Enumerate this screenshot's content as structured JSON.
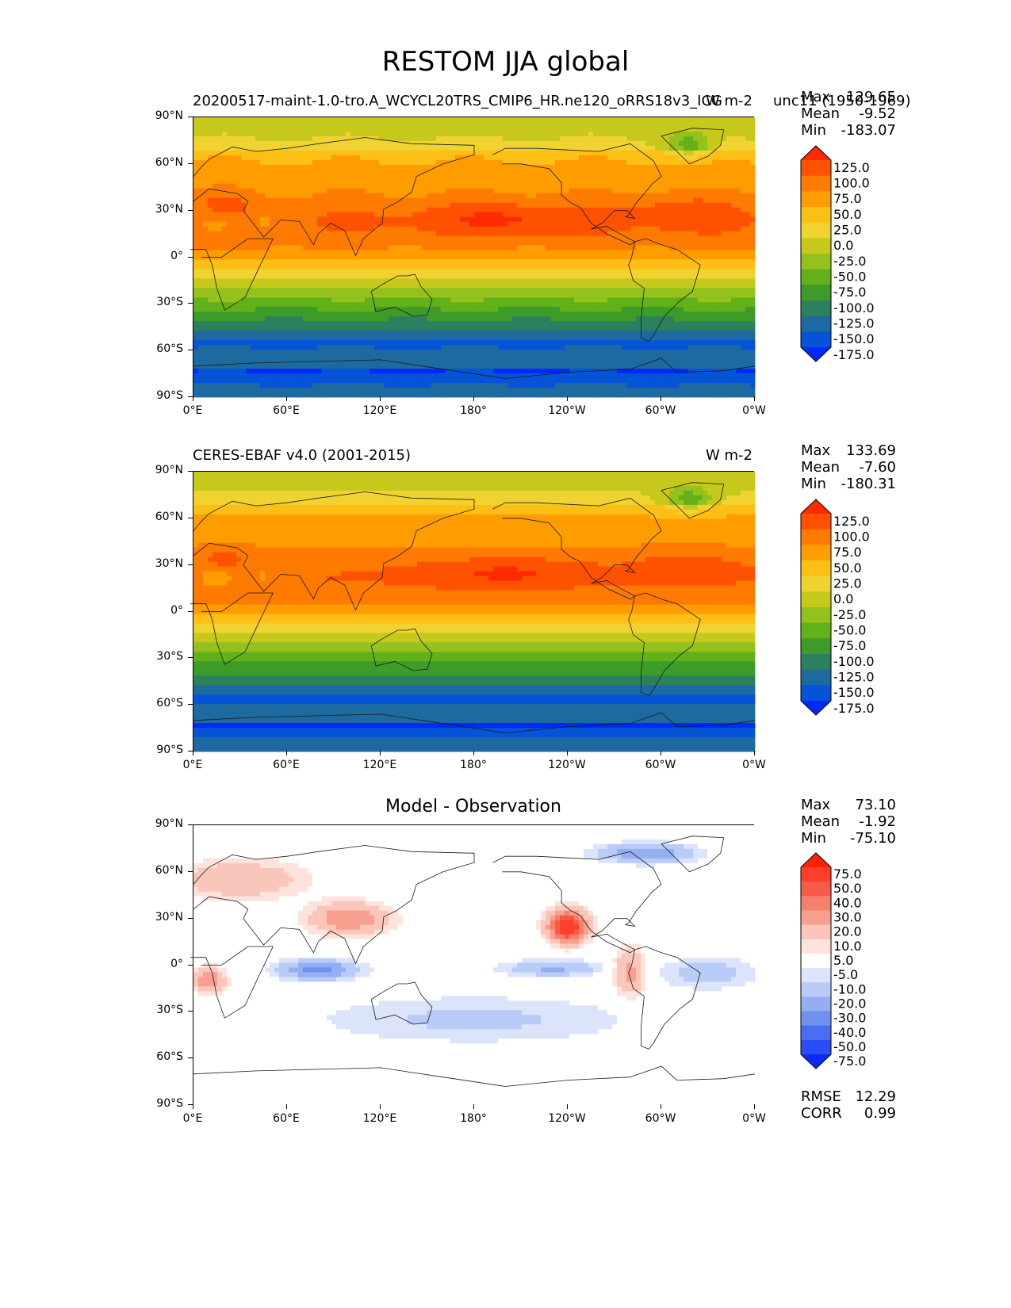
{
  "figure_title": "RESTOM JJA global",
  "panels": [
    {
      "id": "model",
      "title_left": "20200517-maint-1.0-tro.A_WCYCL20TRS_CMIP6_HR.ne120_oRRS18v3_ICG",
      "title_right": "W m-2",
      "title_overlap": "unc11 (1950-1969)",
      "stats": {
        "max": "129.65",
        "mean": "-9.52",
        "min": "-183.07"
      },
      "colorbar": {
        "labels": [
          "125.0",
          "100.0",
          "75.0",
          "50.0",
          "25.0",
          "0.0",
          "-25.0",
          "-50.0",
          "-75.0",
          "-100.0",
          "-125.0",
          "-150.0",
          "-175.0"
        ],
        "colors": [
          "#ff2a00",
          "#ff5200",
          "#ff7a00",
          "#ff9c00",
          "#fcbf15",
          "#f0d330",
          "#c6c81c",
          "#94c21c",
          "#62b01a",
          "#3d9c28",
          "#2b8060",
          "#1d6aa0",
          "#0554d8",
          "#0029ff"
        ]
      }
    },
    {
      "id": "obs",
      "title_left": "CERES-EBAF v4.0 (2001-2015)",
      "title_right": "W m-2",
      "stats": {
        "max": "133.69",
        "mean": "-7.60",
        "min": "-180.31"
      },
      "colorbar": {
        "labels": [
          "125.0",
          "100.0",
          "75.0",
          "50.0",
          "25.0",
          "0.0",
          "-25.0",
          "-50.0",
          "-75.0",
          "-100.0",
          "-125.0",
          "-150.0",
          "-175.0"
        ],
        "colors": [
          "#ff2a00",
          "#ff5200",
          "#ff7a00",
          "#ff9c00",
          "#fcbf15",
          "#f0d330",
          "#c6c81c",
          "#94c21c",
          "#62b01a",
          "#3d9c28",
          "#2b8060",
          "#1d6aa0",
          "#0554d8",
          "#0029ff"
        ]
      }
    },
    {
      "id": "diff",
      "title_center": "Model - Observation",
      "stats": {
        "max": "73.10",
        "mean": "-1.92",
        "min": "-75.10"
      },
      "colorbar": {
        "labels": [
          "75.0",
          "50.0",
          "40.0",
          "30.0",
          "20.0",
          "10.0",
          "5.0",
          "-5.0",
          "-10.0",
          "-20.0",
          "-30.0",
          "-40.0",
          "-50.0",
          "-75.0"
        ],
        "colors": [
          "#ff2200",
          "#ff3f2c",
          "#f75a48",
          "#f5806c",
          "#f7a090",
          "#fbc6ba",
          "#fde3dc",
          "#ffffff",
          "#dbe4fb",
          "#b9cbf7",
          "#95aef2",
          "#7190ee",
          "#4a6ef0",
          "#2a4df5",
          "#0a2af8"
        ]
      },
      "rmse": {
        "label": "RMSE",
        "value": "12.29"
      },
      "corr": {
        "label": "CORR",
        "value": "0.99"
      }
    }
  ],
  "stat_labels": {
    "max": "Max",
    "mean": "Mean",
    "min": "Min"
  },
  "lat_ticks": [
    "90°N",
    "60°N",
    "30°N",
    "0°",
    "30°S",
    "60°S",
    "90°S"
  ],
  "lon_ticks": [
    "0°E",
    "60°E",
    "120°E",
    "180°",
    "120°W",
    "60°W",
    "0°W"
  ]
}
